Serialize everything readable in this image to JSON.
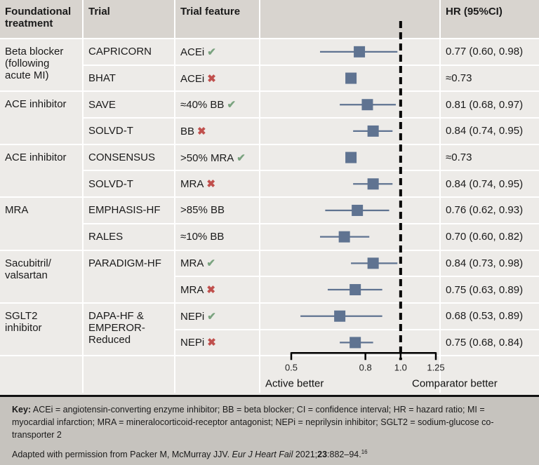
{
  "headers": {
    "foundational": "Foundational treatment",
    "trial": "Trial",
    "feature": "Trial feature",
    "hr": "HR (95%CI)"
  },
  "groups": [
    {
      "treatment": "Beta blocker (following acute MI)"
    },
    {
      "treatment": "ACE inhibitor"
    },
    {
      "treatment": "ACE inhibitor"
    },
    {
      "treatment": "MRA"
    },
    {
      "treatment": "Sacubitril/ valsartan"
    },
    {
      "treatment": "SGLT2 inhibitor"
    }
  ],
  "rows": [
    {
      "trial": "CAPRICORN",
      "feature": "ACEi",
      "mark": "check",
      "hr_text": "0.77 (0.60, 0.98)"
    },
    {
      "trial": "BHAT",
      "feature": "ACEi",
      "mark": "cross",
      "hr_text": "≈0.73"
    },
    {
      "trial": "SAVE",
      "feature": "≈40% BB",
      "mark": "check",
      "hr_text": "0.81 (0.68, 0.97)"
    },
    {
      "trial": "SOLVD-T",
      "feature": "BB",
      "mark": "cross",
      "hr_text": "0.84 (0.74, 0.95)"
    },
    {
      "trial": "CONSENSUS",
      "feature": ">50% MRA",
      "mark": "check",
      "hr_text": "≈0.73"
    },
    {
      "trial": "SOLVD-T",
      "feature": "MRA",
      "mark": "cross",
      "hr_text": "0.84 (0.74, 0.95)"
    },
    {
      "trial": "EMPHASIS-HF",
      "feature": ">85% BB",
      "mark": "",
      "hr_text": "0.76 (0.62, 0.93)"
    },
    {
      "trial": "RALES",
      "feature": "≈10% BB",
      "mark": "",
      "hr_text": "0.70 (0.60, 0.82)"
    },
    {
      "trial": "PARADIGM-HF",
      "feature": "MRA",
      "mark": "check",
      "hr_text": "0.84 (0.73, 0.98)"
    },
    {
      "trial": "",
      "feature": "MRA",
      "mark": "cross",
      "hr_text": "0.75 (0.63, 0.89)"
    },
    {
      "trial": "DAPA-HF & EMPEROR-Reduced",
      "feature": "NEPi",
      "mark": "check",
      "hr_text": "0.68 (0.53, 0.89)"
    },
    {
      "trial": "",
      "feature": "NEPi",
      "mark": "cross",
      "hr_text": "0.75 (0.68, 0.84)"
    }
  ],
  "marks": {
    "check": "✔",
    "cross": "✖"
  },
  "chart_data": {
    "type": "forest",
    "scale": "log",
    "xlim": [
      0.5,
      1.25
    ],
    "reference_line": 1.0,
    "ticks": [
      "0.5",
      "0.8",
      "1.0",
      "1.25"
    ],
    "tick_values": [
      0.5,
      0.8,
      1.0,
      1.25
    ],
    "left_label": "Active better",
    "right_label": "Comparator better",
    "points": [
      {
        "hr": 0.77,
        "lo": 0.6,
        "hi": 0.98
      },
      {
        "hr": 0.73,
        "lo": null,
        "hi": null
      },
      {
        "hr": 0.81,
        "lo": 0.68,
        "hi": 0.97
      },
      {
        "hr": 0.84,
        "lo": 0.74,
        "hi": 0.95
      },
      {
        "hr": 0.73,
        "lo": null,
        "hi": null
      },
      {
        "hr": 0.84,
        "lo": 0.74,
        "hi": 0.95
      },
      {
        "hr": 0.76,
        "lo": 0.62,
        "hi": 0.93
      },
      {
        "hr": 0.7,
        "lo": 0.6,
        "hi": 0.82
      },
      {
        "hr": 0.84,
        "lo": 0.73,
        "hi": 0.98
      },
      {
        "hr": 0.75,
        "lo": 0.63,
        "hi": 0.89
      },
      {
        "hr": 0.68,
        "lo": 0.53,
        "hi": 0.89
      },
      {
        "hr": 0.75,
        "lo": 0.68,
        "hi": 0.84
      }
    ],
    "colors": {
      "marker": "#5f7391",
      "check": "#7aa37f",
      "cross": "#c0504d"
    }
  },
  "key": {
    "label": "Key:",
    "text": "ACEi = angiotensin-converting enzyme inhibitor; BB = beta blocker; CI = confidence interval; HR = hazard ratio; MI = myocardial infarction; MRA = mineralocorticoid-receptor antagonist; NEPi = neprilysin inhibitor; SGLT2 = sodium-glucose co-transporter 2",
    "source_pre": "Adapted with permission from Packer M, McMurray JJV. ",
    "source_journal": "Eur J Heart Fail",
    "source_year": " 2021;",
    "source_volume": "23",
    "source_pages": ":882–94.",
    "source_ref": "16"
  }
}
